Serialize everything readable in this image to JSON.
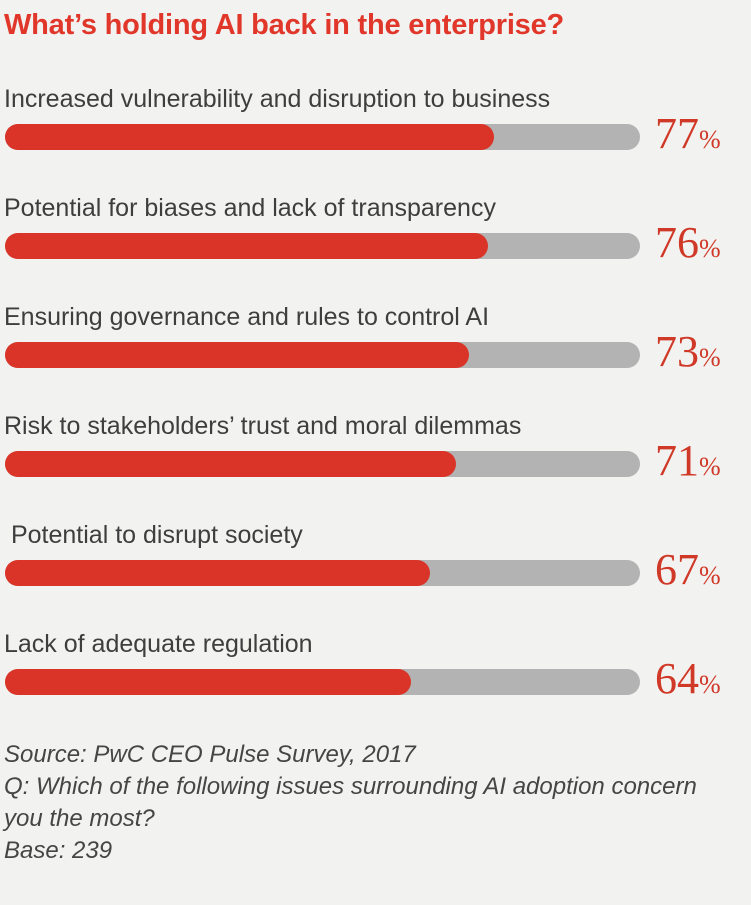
{
  "title": "What’s holding AI back in the enterprise?",
  "colors": {
    "background": "#f2f2f1",
    "title_red": "#e0372a",
    "bar_red": "#da3327",
    "track_gray": "#b3b3b3",
    "value_red": "#d03927",
    "label_gray": "#3e3e3e",
    "footer_gray": "#454545"
  },
  "chart_data": {
    "type": "bar",
    "orientation": "horizontal",
    "title": "What’s holding AI back in the enterprise?",
    "categories": [
      "Increased vulnerability and disruption to business",
      "Potential for biases and lack of transparency",
      "Ensuring governance and rules to control AI",
      "Risk to stakeholders’ trust and moral dilemmas",
      "Potential to disrupt society",
      "Lack of adequate regulation"
    ],
    "values": [
      77,
      76,
      73,
      71,
      67,
      64
    ],
    "value_unit": "%",
    "xlim": [
      0,
      100
    ],
    "grid": false,
    "legend": false,
    "annotations": [
      "Source: PwC CEO Pulse Survey, 2017",
      "Q: Which of the following issues surrounding AI adoption concern you the most?",
      "Base: 239"
    ]
  },
  "rows": [
    {
      "label": "Increased vulnerability and disruption to business",
      "value": 77,
      "display": "77",
      "unit": "%"
    },
    {
      "label": "Potential for biases and lack of transparency",
      "value": 76,
      "display": "76",
      "unit": "%"
    },
    {
      "label": "Ensuring governance and rules to control AI",
      "value": 73,
      "display": "73",
      "unit": "%"
    },
    {
      "label": "Risk to stakeholders’ trust and moral dilemmas",
      "value": 71,
      "display": "71",
      "unit": "%"
    },
    {
      "label": " Potential to disrupt society",
      "value": 67,
      "display": "67",
      "unit": "%"
    },
    {
      "label": "Lack of adequate regulation",
      "value": 64,
      "display": "64",
      "unit": "%"
    }
  ],
  "footer": {
    "lines": [
      "Source: PwC CEO Pulse Survey, 2017",
      "Q: Which of the following issues surrounding AI adoption concern you the most?",
      "Base: 239"
    ]
  }
}
